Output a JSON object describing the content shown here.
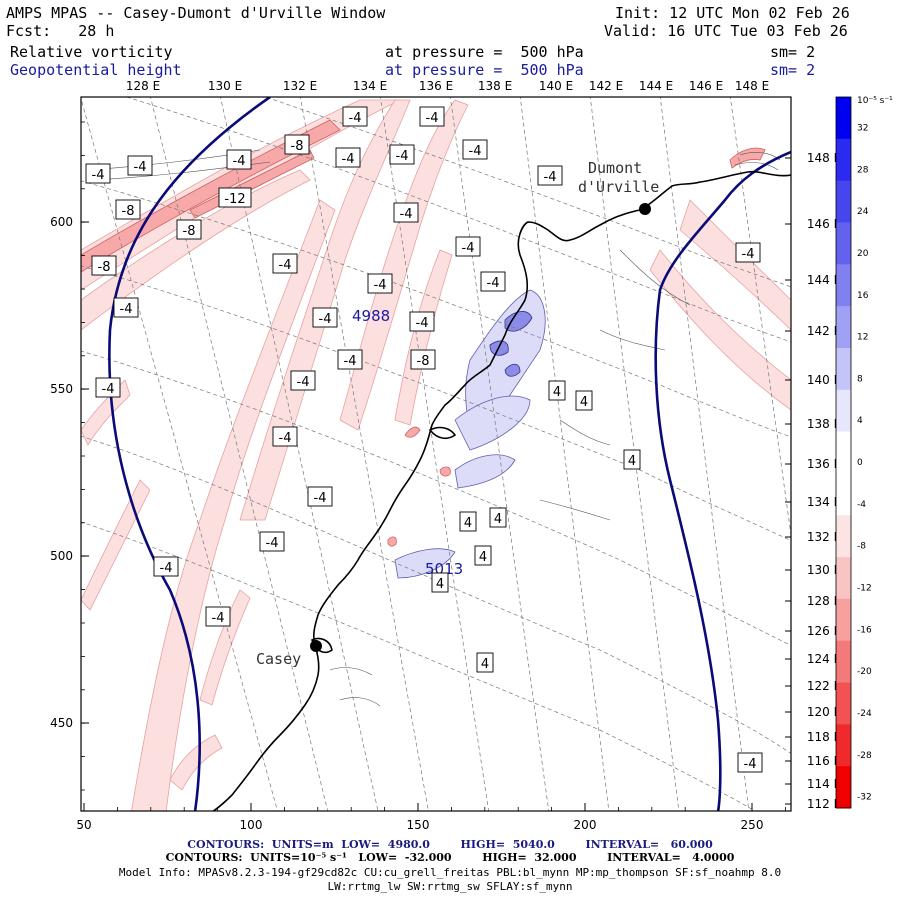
{
  "header": {
    "title": "AMPS MPAS -- Casey-Dumont d'Urville Window",
    "init": "Init: 12 UTC Mon 02 Feb 26",
    "forecast": "Fcst:   28 h",
    "valid": "Valid: 16 UTC Tue 03 Feb 26",
    "field1_name": "Relative vorticity",
    "field1_level": "at pressure =  500 hPa",
    "field1_sm": "sm= 2",
    "field2_name": "Geopotential height",
    "field2_level": "at pressure =  500 hPa",
    "field2_sm": "sm= 2"
  },
  "axes": {
    "top_lon": [
      "128 E",
      "130 E",
      "132 E",
      "134 E",
      "136 E",
      "138 E",
      "140 E",
      "142 E",
      "144 E",
      "146 E",
      "148 E"
    ],
    "right_lat": [
      "148 E",
      "146 E",
      "144 E",
      "142 E",
      "140 E",
      "138 E",
      "136 E",
      "134 E",
      "132 E",
      "130 E",
      "128 E",
      "126 E",
      "124 E",
      "122 E",
      "120 E",
      "118 E",
      "116 E",
      "114 E",
      "112 E"
    ],
    "left_y": [
      "600",
      "550",
      "500",
      "450"
    ],
    "bottom_x": [
      "50",
      "100",
      "150",
      "200",
      "250"
    ]
  },
  "places": {
    "dumont": "Dumont",
    "durville": "d'Urville",
    "casey": "Casey"
  },
  "height_labels": [
    "4988",
    "5013"
  ],
  "vort_labels": {
    "neg4": "-4",
    "neg8": "-8",
    "neg12": "-12",
    "pos4": "4"
  },
  "colorbar": {
    "unit": "10⁻⁵ s⁻¹",
    "ticks": [
      "32",
      "28",
      "24",
      "20",
      "16",
      "12",
      "8",
      "4",
      "0",
      "-4",
      "-8",
      "-12",
      "-16",
      "-20",
      "-24",
      "-28",
      "-32"
    ],
    "colors": [
      "#0000f0",
      "#2a2af0",
      "#4646ee",
      "#6262ee",
      "#8080f0",
      "#a0a0f4",
      "#c4c4f8",
      "#e6e6fc",
      "#ffffff",
      "#ffffff",
      "#fde4e4",
      "#fac4c4",
      "#f7a0a0",
      "#f47a7a",
      "#f25252",
      "#f02a2a",
      "#f00000"
    ]
  },
  "footer": {
    "line1": "CONTOURS:  UNITS=m  LOW=  4980.0        HIGH=  5040.0        INTERVAL=   60.000",
    "line2": "CONTOURS:  UNITS=10⁻⁵ s⁻¹   LOW=  -32.000        HIGH=  32.000        INTERVAL=   4.0000",
    "line3": "Model Info: MPASv8.2.3-194-gf29cd82c CU:cu_grell_freitas PBL:bl_mynn MP:mp_thompson SF:sf_noahmp 8.0",
    "line4": "LW:rrtmg_lw SW:rrtmg_sw SFLAY:sf_mynn"
  }
}
